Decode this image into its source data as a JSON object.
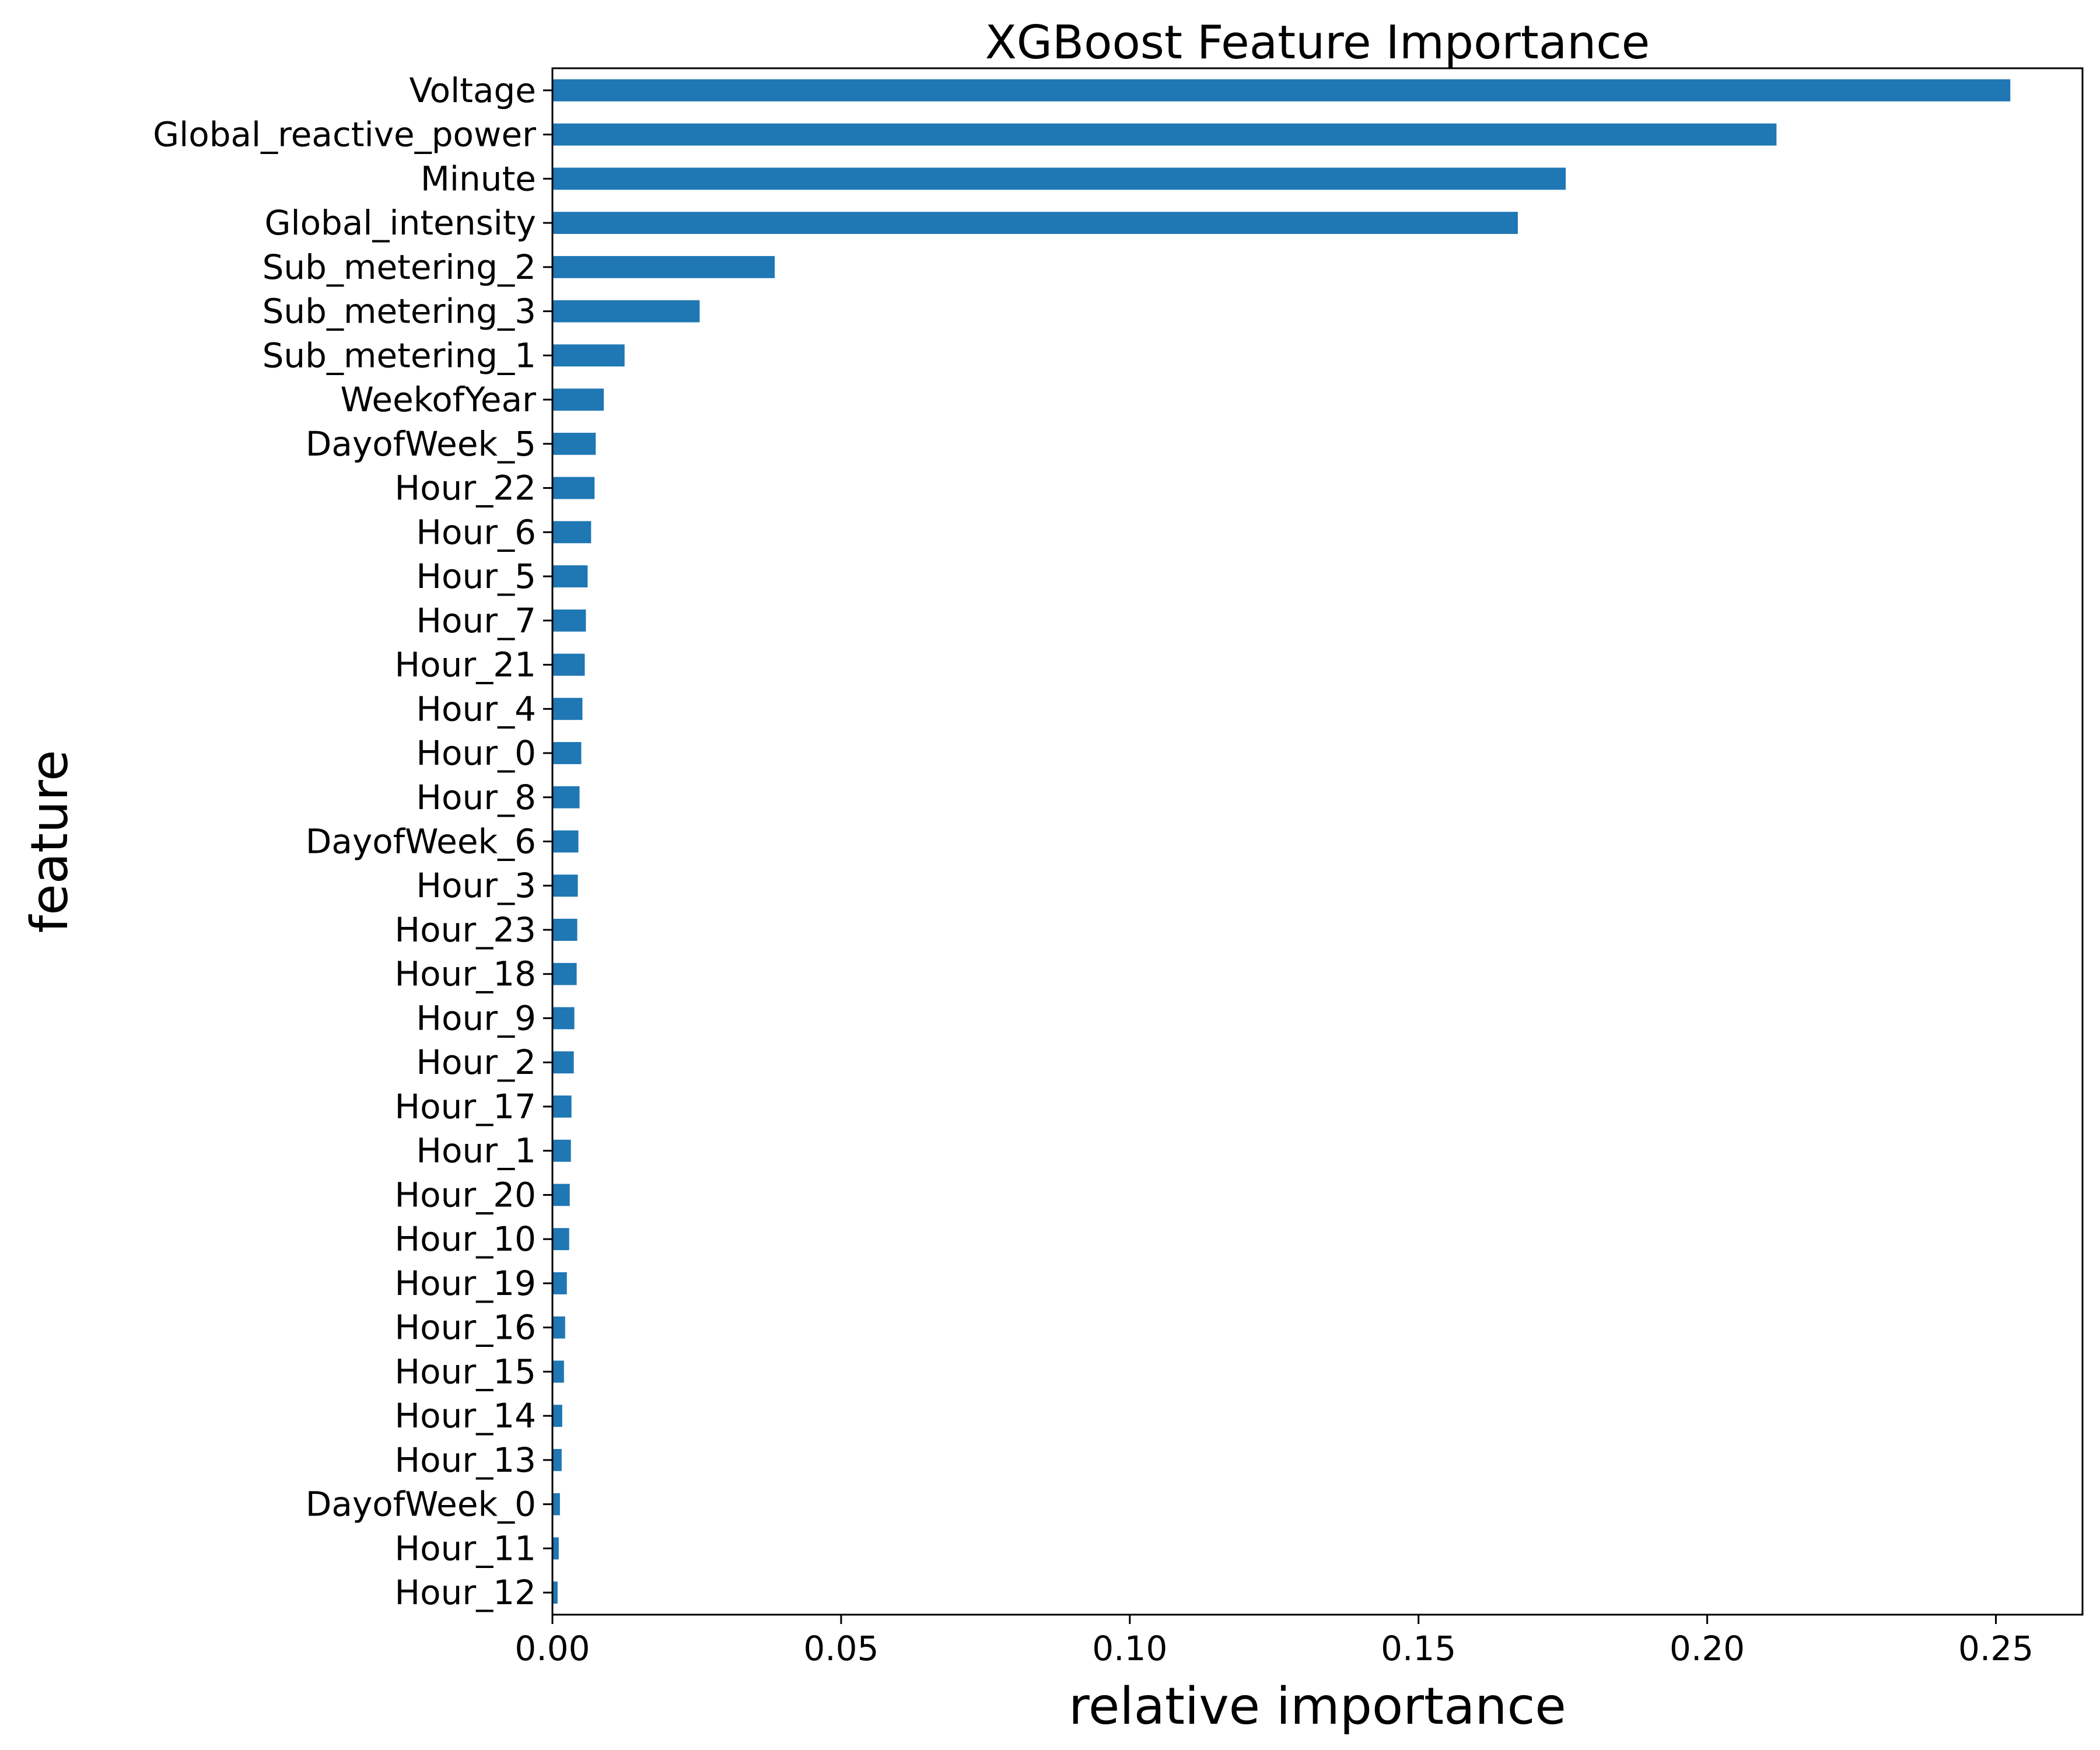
{
  "chart_data": {
    "type": "bar",
    "orientation": "horizontal",
    "title": "XGBoost Feature Importance",
    "xlabel": "relative importance",
    "ylabel": "feature",
    "xlim": [
      0,
      0.265
    ],
    "xticks": [
      0.0,
      0.05,
      0.1,
      0.15,
      0.2,
      0.25
    ],
    "xtick_labels": [
      "0.00",
      "0.05",
      "0.10",
      "0.15",
      "0.20",
      "0.25"
    ],
    "bar_color": "#1f77b4",
    "grid": false,
    "legend": false,
    "categories": [
      "Voltage",
      "Global_reactive_power",
      "Minute",
      "Global_intensity",
      "Sub_metering_2",
      "Sub_metering_3",
      "Sub_metering_1",
      "WeekofYear",
      "DayofWeek_5",
      "Hour_22",
      "Hour_6",
      "Hour_5",
      "Hour_7",
      "Hour_21",
      "Hour_4",
      "Hour_0",
      "Hour_8",
      "DayofWeek_6",
      "Hour_3",
      "Hour_23",
      "Hour_18",
      "Hour_9",
      "Hour_2",
      "Hour_17",
      "Hour_1",
      "Hour_20",
      "Hour_10",
      "Hour_19",
      "Hour_16",
      "Hour_15",
      "Hour_14",
      "Hour_13",
      "DayofWeek_0",
      "Hour_11",
      "Hour_12"
    ],
    "values": [
      0.2525,
      0.212,
      0.1755,
      0.1672,
      0.0385,
      0.0255,
      0.0125,
      0.0089,
      0.0075,
      0.0073,
      0.0067,
      0.0061,
      0.0058,
      0.0056,
      0.0052,
      0.005,
      0.0047,
      0.0045,
      0.0044,
      0.0043,
      0.0042,
      0.0038,
      0.0037,
      0.0033,
      0.0032,
      0.003,
      0.0029,
      0.0025,
      0.0022,
      0.002,
      0.0017,
      0.0016,
      0.0013,
      0.0011,
      0.0009
    ]
  }
}
